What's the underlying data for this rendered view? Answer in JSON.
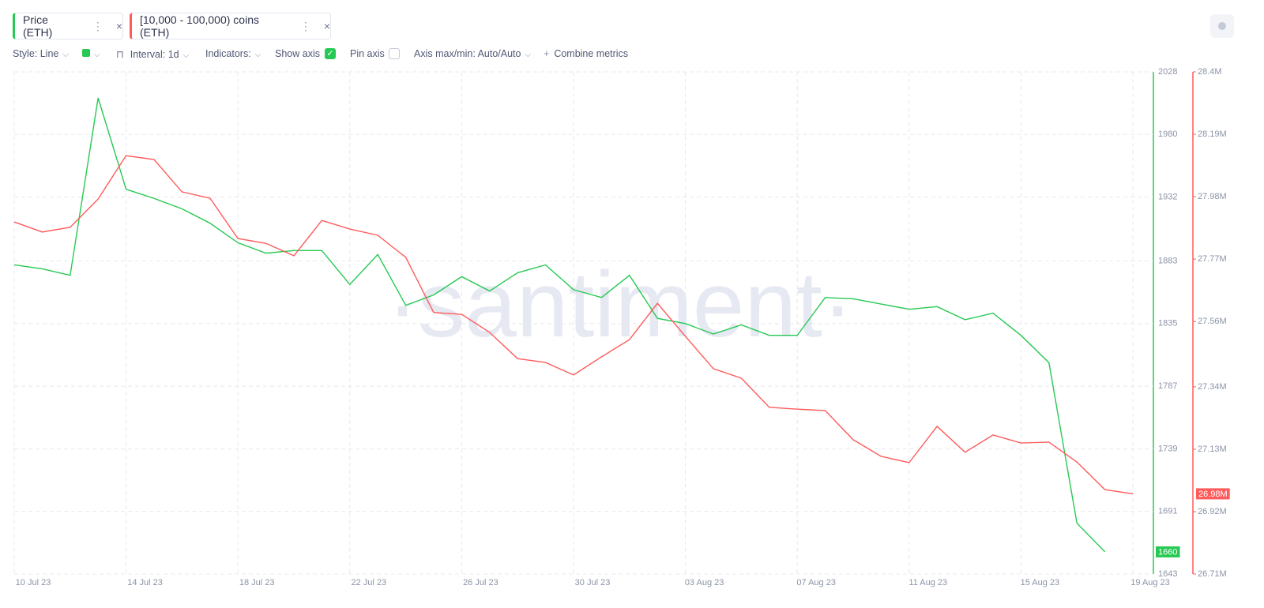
{
  "chips": [
    "Price (ETH)",
    "[10,000 - 100,000) coins (ETH)"
  ],
  "toolbar": {
    "style": "Style: Line",
    "interval": "Interval: 1d",
    "indicators": "Indicators:",
    "show_axis": "Show axis",
    "pin_axis": "Pin axis",
    "axis_minmax": "Axis max/min: Auto/Auto",
    "combine": "Combine metrics"
  },
  "chart_data": {
    "type": "line",
    "watermark": "·santiment·",
    "x": [
      "2023-07-10",
      "2023-07-11",
      "2023-07-12",
      "2023-07-13",
      "2023-07-14",
      "2023-07-15",
      "2023-07-16",
      "2023-07-17",
      "2023-07-18",
      "2023-07-19",
      "2023-07-20",
      "2023-07-21",
      "2023-07-22",
      "2023-07-23",
      "2023-07-24",
      "2023-07-25",
      "2023-07-26",
      "2023-07-27",
      "2023-07-28",
      "2023-07-29",
      "2023-07-30",
      "2023-07-31",
      "2023-08-01",
      "2023-08-02",
      "2023-08-03",
      "2023-08-04",
      "2023-08-05",
      "2023-08-06",
      "2023-08-07",
      "2023-08-08",
      "2023-08-09",
      "2023-08-10",
      "2023-08-11",
      "2023-08-12",
      "2023-08-13",
      "2023-08-14",
      "2023-08-15",
      "2023-08-16",
      "2023-08-17",
      "2023-08-18",
      "2023-08-19"
    ],
    "xlim": [
      "2023-07-10",
      "2023-08-19"
    ],
    "xticks": [
      {
        "value": "2023-07-10",
        "label": "10 Jul 23"
      },
      {
        "value": "2023-07-14",
        "label": "14 Jul 23"
      },
      {
        "value": "2023-07-18",
        "label": "18 Jul 23"
      },
      {
        "value": "2023-07-22",
        "label": "22 Jul 23"
      },
      {
        "value": "2023-07-26",
        "label": "26 Jul 23"
      },
      {
        "value": "2023-07-30",
        "label": "30 Jul 23"
      },
      {
        "value": "2023-08-03",
        "label": "03 Aug 23"
      },
      {
        "value": "2023-08-07",
        "label": "07 Aug 23"
      },
      {
        "value": "2023-08-11",
        "label": "11 Aug 23"
      },
      {
        "value": "2023-08-15",
        "label": "15 Aug 23"
      },
      {
        "value": "2023-08-19",
        "label": "19 Aug 23"
      }
    ],
    "ylim": [
      1643,
      2028
    ],
    "yticks": [
      2028,
      1980,
      1932,
      1883,
      1835,
      1787,
      1739,
      1691,
      1643
    ],
    "y2lim": [
      26710000,
      28400000
    ],
    "y2ticks": [
      {
        "value": 28400000,
        "label": "28.4M"
      },
      {
        "value": 28190000,
        "label": "28.19M"
      },
      {
        "value": 27980000,
        "label": "27.98M"
      },
      {
        "value": 27770000,
        "label": "27.77M"
      },
      {
        "value": 27560000,
        "label": "27.56M"
      },
      {
        "value": 27340000,
        "label": "27.34M"
      },
      {
        "value": 27130000,
        "label": "27.13M"
      },
      {
        "value": 26920000,
        "label": "26.92M"
      },
      {
        "value": 26710000,
        "label": "26.71M"
      }
    ],
    "grid": true,
    "series": [
      {
        "name": "Price (ETH)",
        "color": "#26c953",
        "axis": "y",
        "values": [
          1880,
          1877,
          1872,
          2008,
          1938,
          1931,
          1923,
          1912,
          1897,
          1889,
          1891,
          1891,
          1865,
          1888,
          1849,
          1857,
          1871,
          1860,
          1874,
          1880,
          1861,
          1855,
          1872,
          1839,
          1835,
          1827,
          1834,
          1826,
          1826,
          1855,
          1854,
          1850,
          1846,
          1848,
          1838,
          1843,
          1826,
          1805,
          1682,
          1660,
          null
        ]
      },
      {
        "name": "[10,000 - 100,000) coins (ETH)",
        "color": "#ff5b5b",
        "axis": "y2",
        "values": [
          27895000,
          27861000,
          27877000,
          27972000,
          28118000,
          28105000,
          27996000,
          27975000,
          27839000,
          27823000,
          27781000,
          27900000,
          27871000,
          27850000,
          27776000,
          27590000,
          27584000,
          27523000,
          27435000,
          27422000,
          27380000,
          27441000,
          27499000,
          27621000,
          27510000,
          27401000,
          27369000,
          27271000,
          27265000,
          27260000,
          27162000,
          27106000,
          27085000,
          27207000,
          27120000,
          27178000,
          27151000,
          27154000,
          27087000,
          26994000,
          26980000
        ],
        "value_labels": [
          null,
          null,
          null,
          null,
          null,
          null,
          null,
          null,
          null,
          null,
          null,
          null,
          null,
          null,
          null,
          null,
          null,
          null,
          null,
          null,
          null,
          null,
          null,
          null,
          null,
          null,
          null,
          null,
          null,
          null,
          null,
          null,
          null,
          null,
          null,
          null,
          null,
          null,
          null,
          null,
          "26.98M"
        ]
      }
    ]
  }
}
